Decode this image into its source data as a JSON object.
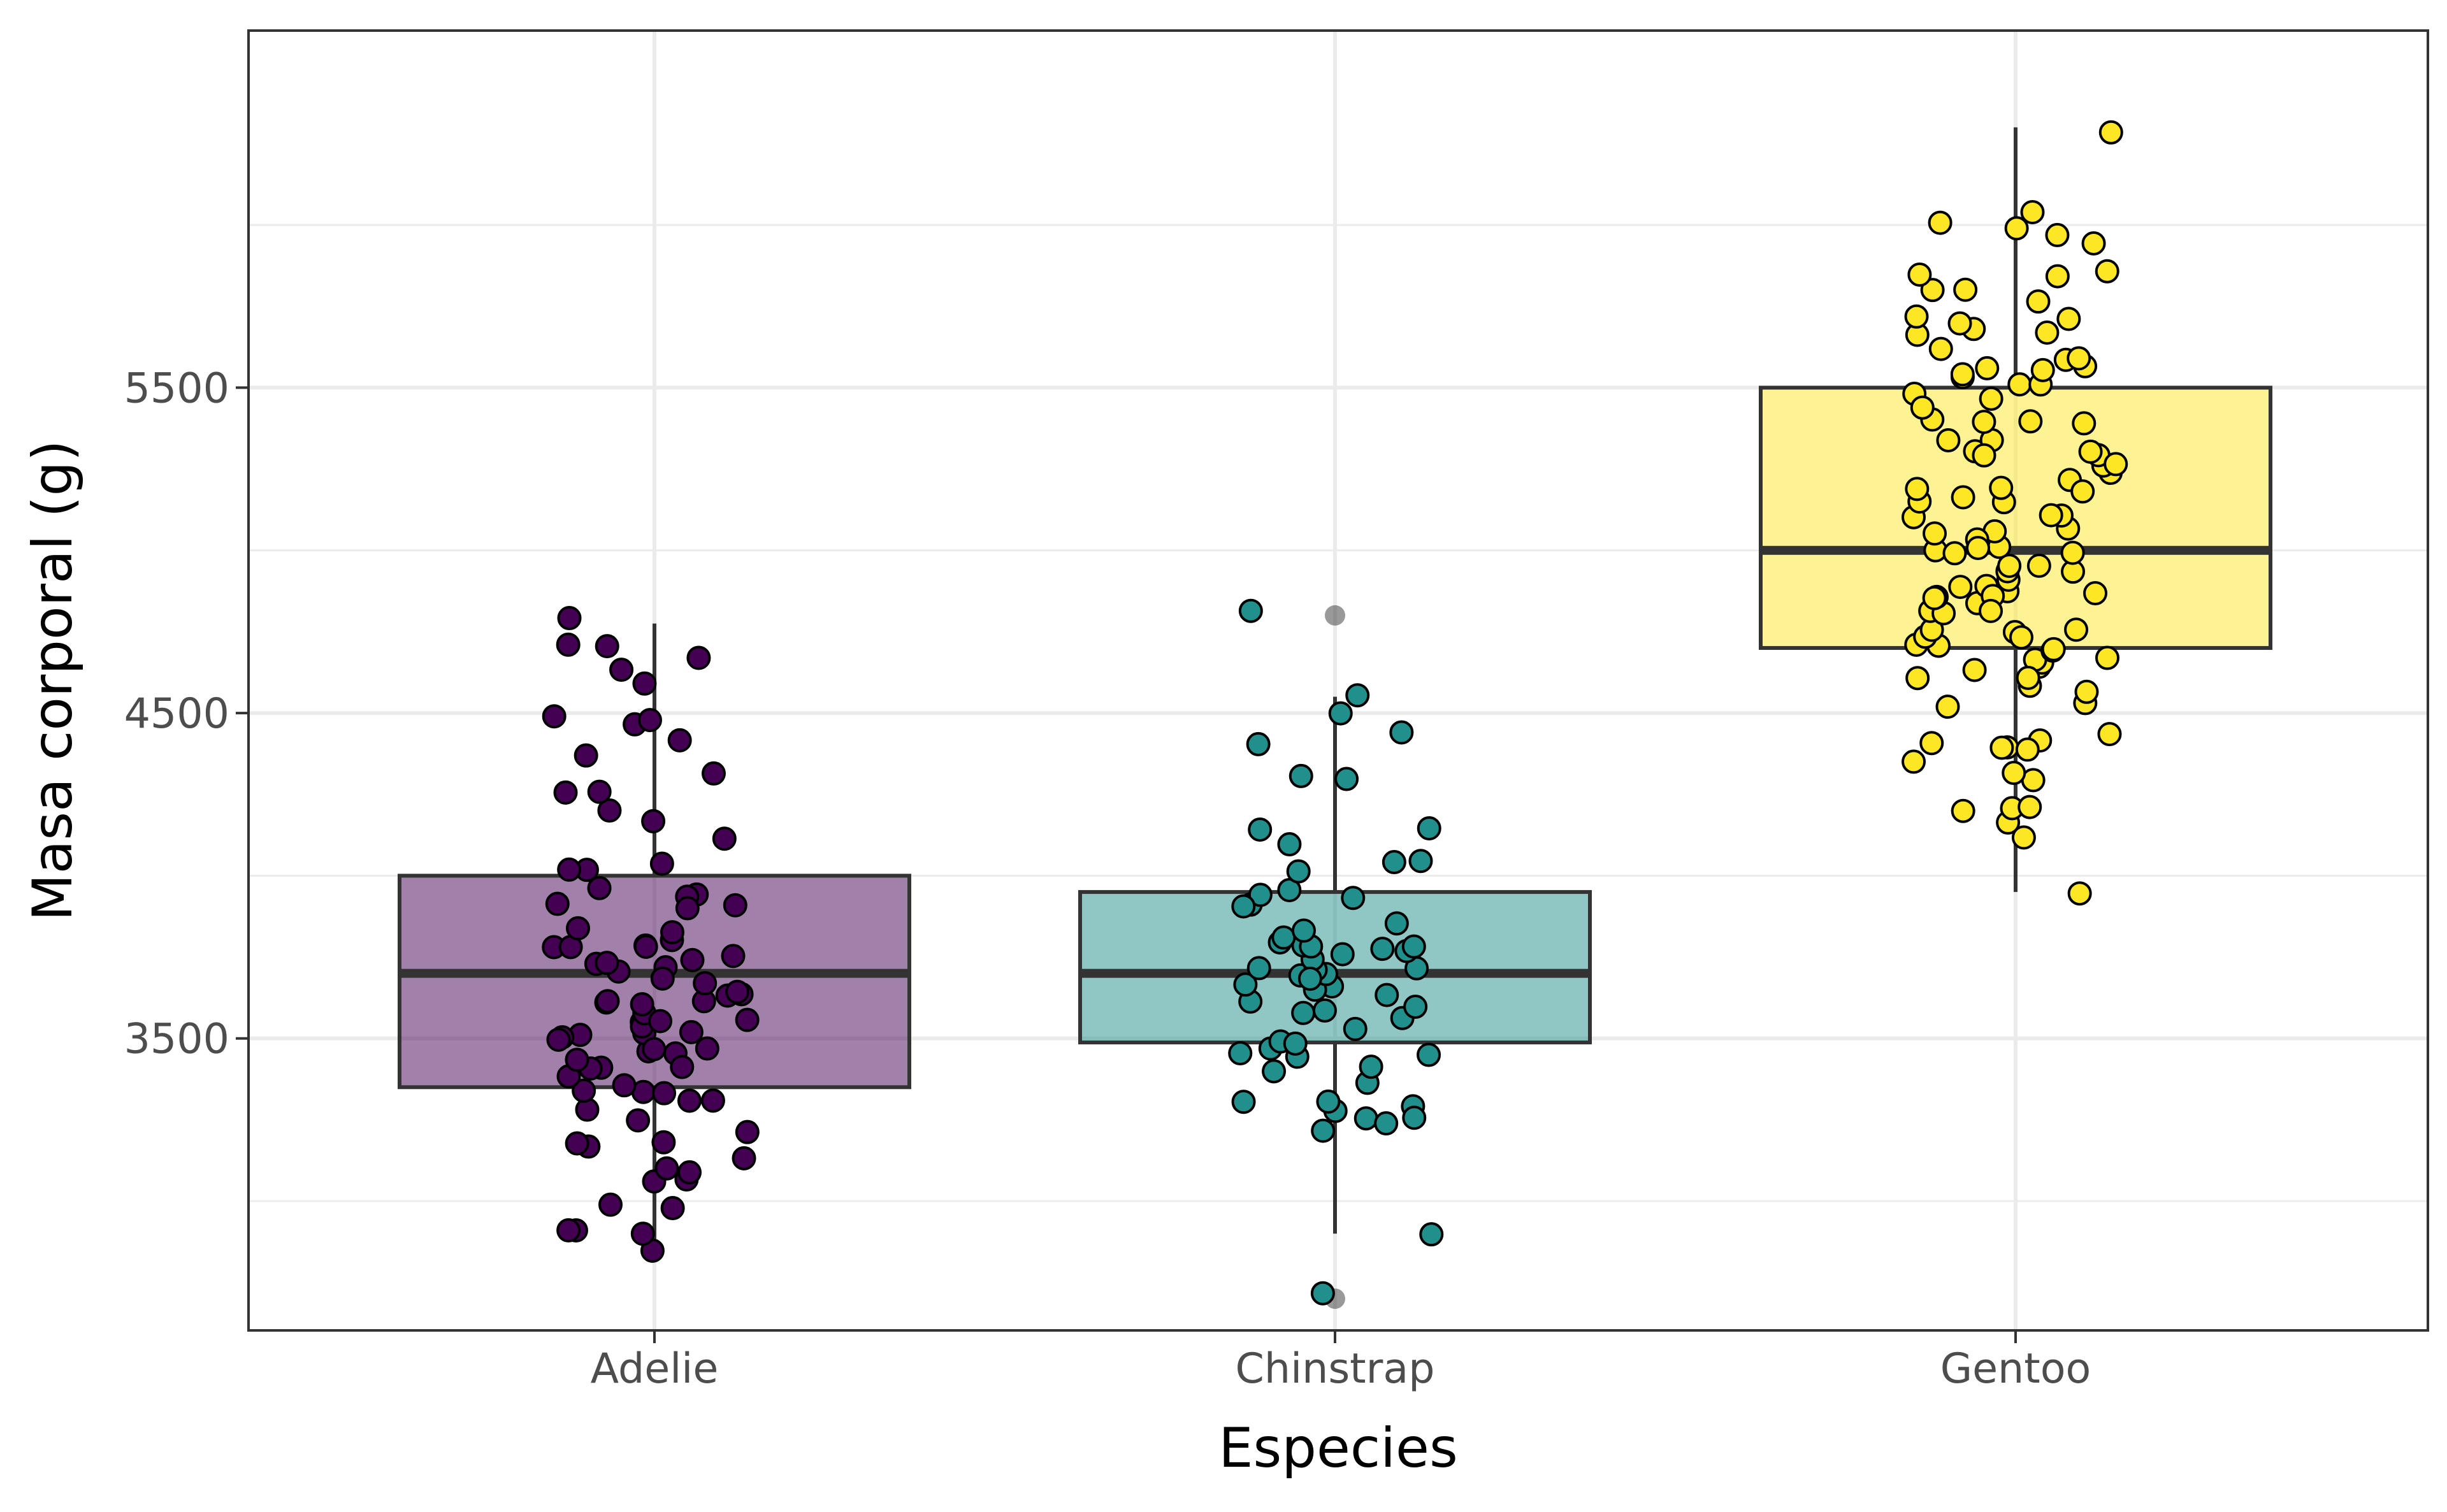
{
  "chart_data": {
    "type": "box",
    "xlabel": "Especies",
    "ylabel": "Masa corporal (g)",
    "ylim": [
      2602.5,
      6597.5
    ],
    "y_ticks": [
      3500,
      4500,
      5500
    ],
    "y_minor_ticks": [
      3000,
      4000,
      5000,
      6000
    ],
    "grid": true,
    "legend": "none",
    "categories": [
      "Adelie",
      "Chinstrap",
      "Gentoo"
    ],
    "boxes": [
      {
        "name": "Adelie",
        "color": "#440154",
        "min": 2850,
        "q1": 3350,
        "median": 3700,
        "q3": 4000,
        "max": 4775,
        "outliers": []
      },
      {
        "name": "Chinstrap",
        "color": "#21908C",
        "min": 2900,
        "q1": 3487.5,
        "median": 3700,
        "q3": 3950,
        "max": 4550,
        "outliers": [
          2700,
          4800
        ]
      },
      {
        "name": "Gentoo",
        "color": "#FDE725",
        "min": 3950,
        "q1": 4700,
        "median": 5000,
        "q3": 5500,
        "max": 6300,
        "outliers": []
      }
    ],
    "points": [
      {
        "name": "Adelie",
        "values": [
          2850,
          2900,
          2900,
          2925,
          2975,
          3000,
          3050,
          3050,
          3075,
          3100,
          3150,
          3150,
          3175,
          3200,
          3250,
          3300,
          3300,
          3325,
          3325,
          3350,
          3350,
          3400,
          3425,
          3450,
          3450,
          3475,
          3500,
          3500,
          3500,
          3525,
          3550,
          3550,
          3550,
          3575,
          3600,
          3600,
          3625,
          3650,
          3650,
          3675,
          3700,
          3700,
          3725,
          3750,
          3750,
          3775,
          3800,
          3800,
          3800,
          3825,
          3850,
          3900,
          3900,
          3950,
          3950,
          3975,
          4000,
          4000,
          4050,
          4100,
          4150,
          4200,
          4250,
          4250,
          4300,
          4350,
          4400,
          4450,
          4475,
          4500,
          4600,
          4650,
          4675,
          4700,
          4725,
          4775,
          3400,
          3500,
          3600,
          3700,
          3550,
          3450,
          3900,
          3650,
          3800,
          3750,
          3475,
          3325,
          3200,
          3425
        ]
      },
      {
        "name": "Chinstrap",
        "values": [
          2700,
          2900,
          3250,
          3250,
          3275,
          3300,
          3300,
          3325,
          3350,
          3400,
          3400,
          3425,
          3450,
          3450,
          3475,
          3500,
          3500,
          3525,
          3550,
          3575,
          3600,
          3600,
          3650,
          3650,
          3675,
          3675,
          3700,
          3700,
          3700,
          3725,
          3725,
          3750,
          3750,
          3775,
          3775,
          3800,
          3800,
          3800,
          3850,
          3900,
          3950,
          3950,
          3950,
          4000,
          4050,
          4050,
          4100,
          4150,
          4150,
          4300,
          4300,
          4400,
          4450,
          4500,
          4550,
          4800,
          3700,
          3650,
          3600,
          3200,
          3250,
          3800,
          3900,
          3850
        ]
      },
      {
        "name": "Gentoo",
        "values": [
          3950,
          4100,
          4150,
          4200,
          4200,
          4200,
          4300,
          4300,
          4350,
          4375,
          4400,
          4400,
          4400,
          4450,
          4500,
          4550,
          4575,
          4600,
          4600,
          4625,
          4650,
          4650,
          4650,
          4700,
          4700,
          4700,
          4725,
          4750,
          4750,
          4750,
          4800,
          4800,
          4850,
          4850,
          4850,
          4875,
          4875,
          4900,
          4900,
          4925,
          4950,
          4950,
          5000,
          5000,
          5000,
          5000,
          5050,
          5050,
          5050,
          5100,
          5100,
          5150,
          5150,
          5200,
          5200,
          5200,
          5250,
          5250,
          5300,
          5300,
          5300,
          5350,
          5350,
          5400,
          5400,
          5400,
          5450,
          5500,
          5500,
          5500,
          5550,
          5550,
          5550,
          5550,
          5600,
          5600,
          5650,
          5650,
          5700,
          5700,
          5700,
          5750,
          5800,
          5800,
          5850,
          5850,
          5850,
          5950,
          5950,
          6000,
          6000,
          6050,
          6300,
          4875,
          5100,
          4750,
          4850,
          5050,
          4650,
          5000,
          5200,
          5700,
          5300,
          4400,
          4600,
          5600,
          5400,
          4700,
          5450,
          5250,
          4950,
          4800,
          5550,
          5150
        ]
      }
    ]
  }
}
